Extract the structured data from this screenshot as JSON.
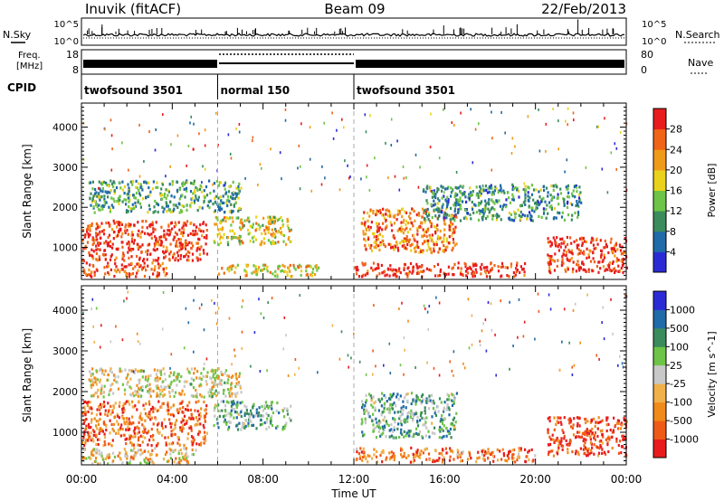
{
  "header": {
    "station": "Inuvik (fitACF)",
    "beam": "Beam 09",
    "date": "22/Feb/2013"
  },
  "top_panels": {
    "nsky_label": "N.Sky",
    "nsky_scale_top": "10^5",
    "nsky_scale_bottom": "10^0",
    "nsearch_label": "N.Search",
    "nsearch_scale_top": "10^5",
    "nsearch_scale_bottom": "10^0",
    "freq_label_1": "Freq.",
    "freq_label_2": "[MHz]",
    "freq_scale_top": "18",
    "freq_scale_bottom": "8",
    "nave_label": "Nave",
    "nave_scale_top": "80",
    "nave_scale_bottom": "0",
    "cpid_label": "CPID",
    "cpid_segments": [
      {
        "label": "twofsound 3501",
        "start_hr": 0,
        "end_hr": 6
      },
      {
        "label": "normal 150",
        "start_hr": 6,
        "end_hr": 12
      },
      {
        "label": "twofsound 3501",
        "start_hr": 12,
        "end_hr": 24
      }
    ]
  },
  "chart_data": [
    {
      "type": "heatmap",
      "title": "",
      "xlabel": "Time UT",
      "ylabel": "Slant Range [km]",
      "xlim": [
        0,
        24
      ],
      "ylim": [
        200,
        4600
      ],
      "x_ticks": [
        "00:00",
        "04:00",
        "08:00",
        "12:00",
        "16:00",
        "20:00",
        "00:00"
      ],
      "y_ticks": [
        "1000",
        "2000",
        "3000",
        "4000"
      ],
      "colorbar": {
        "label": "Power [dB]",
        "ticks": [
          "28",
          "24",
          "20",
          "16",
          "12",
          "8",
          "4"
        ],
        "colors": [
          "#2b2bd6",
          "#1f6aa8",
          "#3a8c5c",
          "#6ec446",
          "#e8d21c",
          "#f09a1a",
          "#f06418",
          "#e81c1c"
        ]
      },
      "regions": [
        {
          "t0": 0.0,
          "t1": 5.5,
          "r0": 700,
          "r1": 1700,
          "level": 0.92
        },
        {
          "t0": 0.0,
          "t1": 3.8,
          "r0": 300,
          "r1": 650,
          "level": 0.85
        },
        {
          "t0": 5.8,
          "t1": 9.2,
          "r0": 1100,
          "r1": 1800,
          "level": 0.55
        },
        {
          "t0": 6.0,
          "t1": 10.5,
          "r0": 300,
          "r1": 600,
          "level": 0.6
        },
        {
          "t0": 12.3,
          "t1": 16.5,
          "r0": 900,
          "r1": 2000,
          "level": 0.75
        },
        {
          "t0": 12.0,
          "t1": 19.5,
          "r0": 300,
          "r1": 650,
          "level": 0.95
        },
        {
          "t0": 20.5,
          "t1": 24.0,
          "r0": 400,
          "r1": 1300,
          "level": 0.9
        },
        {
          "t0": 0.3,
          "t1": 7.0,
          "r0": 1900,
          "r1": 2700,
          "level": 0.35
        },
        {
          "t0": 15.0,
          "t1": 22.0,
          "r0": 1700,
          "r1": 2600,
          "level": 0.3
        }
      ]
    },
    {
      "type": "heatmap",
      "title": "",
      "xlabel": "Time UT",
      "ylabel": "Slant Range [km]",
      "xlim": [
        0,
        24
      ],
      "ylim": [
        200,
        4600
      ],
      "x_ticks": [
        "00:00",
        "04:00",
        "08:00",
        "12:00",
        "16:00",
        "20:00",
        "00:00"
      ],
      "y_ticks": [
        "1000",
        "2000",
        "3000",
        "4000"
      ],
      "colorbar": {
        "label": "Velocity [m s^-1]",
        "ticks": [
          "1000",
          "500",
          "100",
          "25",
          "-25",
          "-100",
          "-500",
          "-1000"
        ],
        "colors": [
          "#e81c1c",
          "#f05a18",
          "#f08a1a",
          "#f0b04a",
          "#c8c8c8",
          "#6ec446",
          "#3a8c5c",
          "#1f6aa8",
          "#2b2bd6"
        ]
      },
      "regions": [
        {
          "t0": 0.0,
          "t1": 5.5,
          "r0": 700,
          "r1": 1800,
          "level": 0.2
        },
        {
          "t0": 0.0,
          "t1": 5.0,
          "r0": 250,
          "r1": 650,
          "level": 0.4
        },
        {
          "t0": 5.8,
          "t1": 9.2,
          "r0": 1100,
          "r1": 1800,
          "level": 0.65
        },
        {
          "t0": 12.3,
          "t1": 16.5,
          "r0": 900,
          "r1": 2000,
          "level": 0.65
        },
        {
          "t0": 12.0,
          "t1": 20.0,
          "r0": 300,
          "r1": 650,
          "level": 0.25
        },
        {
          "t0": 20.5,
          "t1": 24.0,
          "r0": 450,
          "r1": 1400,
          "level": 0.12
        },
        {
          "t0": 0.3,
          "t1": 7.0,
          "r0": 1900,
          "r1": 2600,
          "level": 0.45
        }
      ]
    }
  ]
}
